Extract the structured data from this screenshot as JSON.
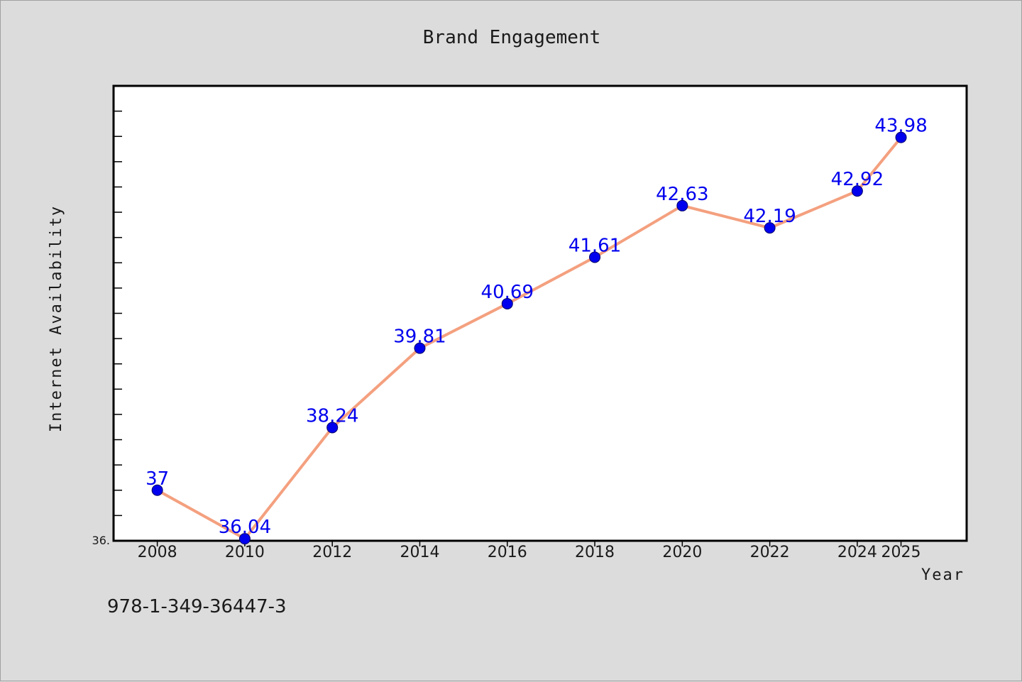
{
  "footer_code": "978-1-349-36447-3",
  "colors": {
    "background": "#dcdcdc",
    "plot_background": "#ffffff",
    "line": "#f4a07f",
    "marker": "#0000ee",
    "data_label": "#0000ee"
  },
  "chart_data": {
    "type": "line",
    "title": "Brand Engagement",
    "xlabel": "Year",
    "ylabel": "Internet Availability",
    "x": [
      2008,
      2010,
      2012,
      2014,
      2016,
      2018,
      2020,
      2022,
      2024,
      2025
    ],
    "x_tick_labels": [
      "2008",
      "2010",
      "2012",
      "2014",
      "2016",
      "2018",
      "2020",
      "2022",
      "2024",
      "2025"
    ],
    "series": [
      {
        "values": [
          37,
          36.04,
          38.24,
          39.81,
          40.69,
          41.61,
          42.63,
          42.19,
          42.92,
          43.98
        ],
        "data_labels": [
          "37",
          "36.04",
          "38.24",
          "39.81",
          "40.69",
          "41.61",
          "42.63",
          "42.19",
          "42.92",
          "43.98"
        ]
      }
    ],
    "y_tick_labels": [
      "36."
    ],
    "ylim": [
      36.0,
      45.0
    ],
    "grid": false,
    "legend": "none"
  }
}
